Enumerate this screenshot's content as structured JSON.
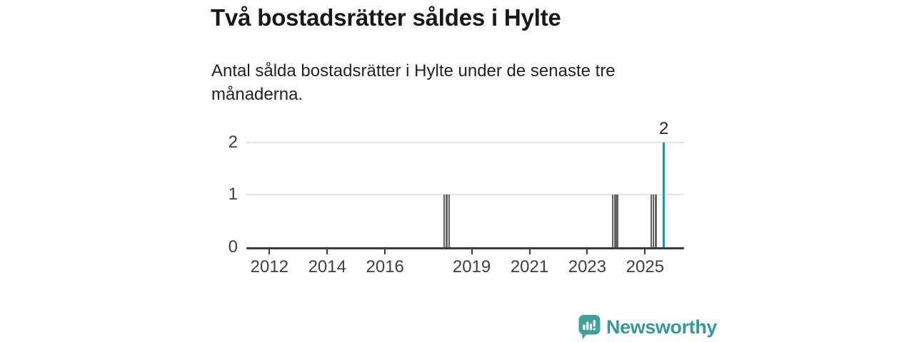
{
  "header": {
    "title": "Två bostadsrätter såldes i Hylte",
    "subtitle": "Antal sålda bostadsrätter i Hylte under de senaste tre månaderna."
  },
  "chart_data": {
    "type": "bar",
    "title": "Två bostadsrätter såldes i Hylte",
    "subtitle": "Antal sålda bostadsrätter i Hylte under de senaste tre månaderna.",
    "xlabel": "",
    "ylabel": "",
    "x_axis": {
      "range": [
        2011.2,
        2026.35
      ],
      "ticks": [
        2012,
        2014,
        2016,
        2019,
        2021,
        2023,
        2025
      ]
    },
    "y_axis": {
      "range": [
        0,
        2
      ],
      "ticks": [
        0,
        1,
        2
      ]
    },
    "grid": "horizontal-only",
    "legend": "none",
    "bars": [
      {
        "x": 2018.05,
        "value": 1,
        "series": "previous_months"
      },
      {
        "x": 2018.13,
        "value": 1,
        "series": "previous_months"
      },
      {
        "x": 2018.22,
        "value": 1,
        "series": "previous_months"
      },
      {
        "x": 2023.88,
        "value": 1,
        "series": "previous_months"
      },
      {
        "x": 2023.96,
        "value": 1,
        "series": "previous_months"
      },
      {
        "x": 2024.04,
        "value": 1,
        "series": "previous_months"
      },
      {
        "x": 2025.21,
        "value": 1,
        "series": "previous_months"
      },
      {
        "x": 2025.29,
        "value": 1,
        "series": "previous_months"
      },
      {
        "x": 2025.37,
        "value": 1,
        "series": "previous_months"
      },
      {
        "x": 2025.65,
        "value": 2,
        "series": "latest",
        "label": "2"
      }
    ],
    "colors": {
      "previous_months": "#63636b",
      "latest": "#00a79b"
    }
  },
  "footer": {
    "brand": "Newsworthy",
    "logo_icon": "bar-chart-speech-bubble-icon",
    "icon_color": "#42a09d",
    "text_color": "#35999b"
  }
}
